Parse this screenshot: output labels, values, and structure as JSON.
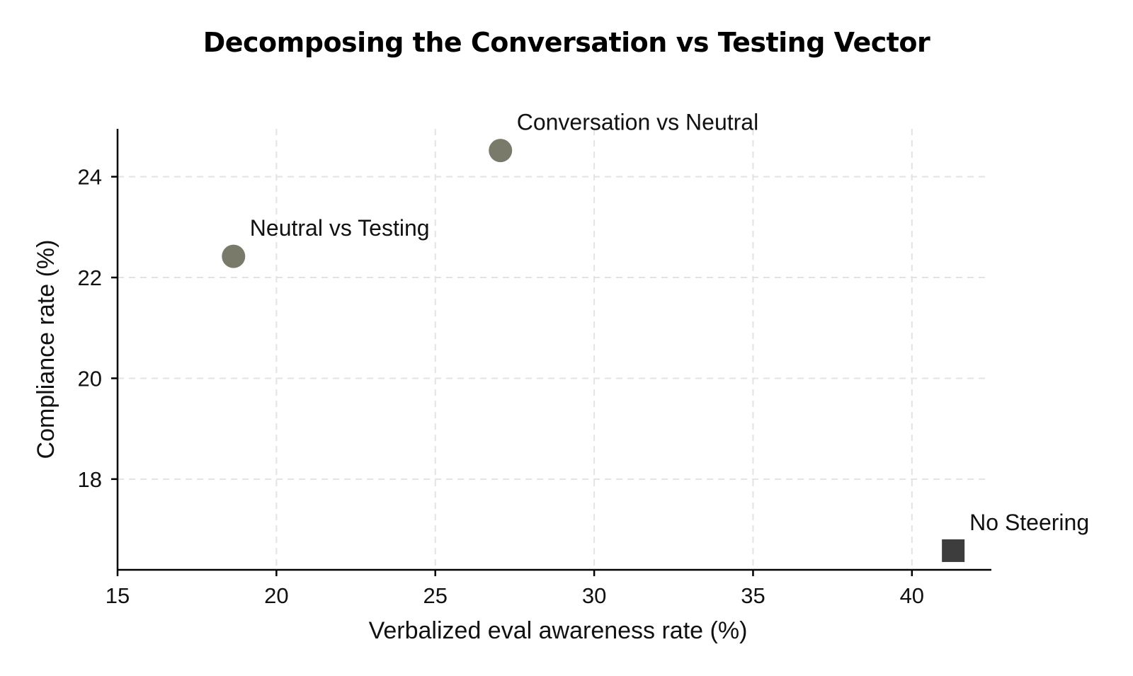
{
  "chart_data": {
    "type": "scatter",
    "title": "Decomposing the Conversation vs Testing Vector",
    "xlabel": "Verbalized eval awareness rate (%)",
    "ylabel": "Compliance rate (%)",
    "xlim": [
      15,
      42.5
    ],
    "ylim": [
      16.2,
      24.95
    ],
    "xticks": [
      15,
      20,
      25,
      30,
      35,
      40
    ],
    "yticks": [
      18,
      20,
      22,
      24
    ],
    "grid": true,
    "points": [
      {
        "label": "Conversation vs Neutral",
        "x": 27.05,
        "y": 24.52,
        "marker": "circle",
        "color": "#7a7a6a"
      },
      {
        "label": "Neutral vs Testing",
        "x": 18.65,
        "y": 22.42,
        "marker": "circle",
        "color": "#7a7a6a"
      },
      {
        "label": "No Steering",
        "x": 41.3,
        "y": 16.58,
        "marker": "square",
        "color": "#3d3d3d"
      }
    ]
  }
}
